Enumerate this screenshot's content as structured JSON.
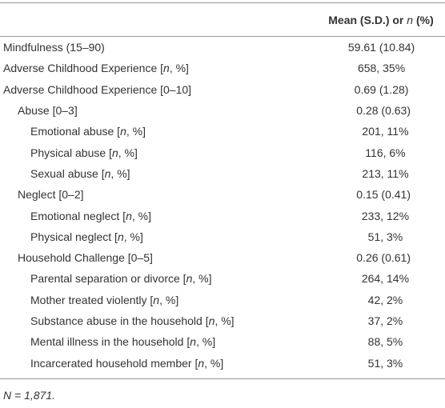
{
  "table": {
    "header": {
      "value_column": [
        "Mean (S.D.) or ",
        "n",
        " (%)"
      ]
    },
    "rows": [
      {
        "label": [
          "Mindfulness (15–90)"
        ],
        "value": "59.61 (10.84)"
      },
      {
        "label": [
          "Adverse Childhood Experience [",
          "n",
          ", %]"
        ],
        "value": "658, 35%"
      },
      {
        "label": [
          "Adverse Childhood Experience [0–10]"
        ],
        "value": "0.69 (1.28)"
      },
      {
        "label": [
          "Abuse [0–3]"
        ],
        "value": "0.28 (0.63)"
      },
      {
        "label": [
          "Emotional abuse [",
          "n",
          ", %]"
        ],
        "value": "201, 11%"
      },
      {
        "label": [
          "Physical abuse [",
          "n",
          ", %]"
        ],
        "value": "116, 6%"
      },
      {
        "label": [
          "Sexual abuse [",
          "n",
          ", %]"
        ],
        "value": "213, 11%"
      },
      {
        "label": [
          "Neglect [0–2]"
        ],
        "value": "0.15 (0.41)"
      },
      {
        "label": [
          "Emotional neglect [",
          "n",
          ", %]"
        ],
        "value": "233, 12%"
      },
      {
        "label": [
          "Physical neglect [",
          "n",
          ", %]"
        ],
        "value": "51, 3%"
      },
      {
        "label": [
          "Household Challenge [0–5]"
        ],
        "value": "0.26 (0.61)"
      },
      {
        "label": [
          "Parental separation or divorce [",
          "n",
          ", %]"
        ],
        "value": "264, 14%"
      },
      {
        "label": [
          "Mother treated violently [",
          "n",
          ", %]"
        ],
        "value": "42, 2%"
      },
      {
        "label": [
          "Substance abuse in the household [",
          "n",
          ", %]"
        ],
        "value": "37, 2%"
      },
      {
        "label": [
          "Mental illness in the household [",
          "n",
          ", %]"
        ],
        "value": "88, 5%"
      },
      {
        "label": [
          "Incarcerated household member [",
          "n",
          ", %]"
        ],
        "value": "51, 3%"
      }
    ],
    "footnote": "N = 1,871."
  }
}
